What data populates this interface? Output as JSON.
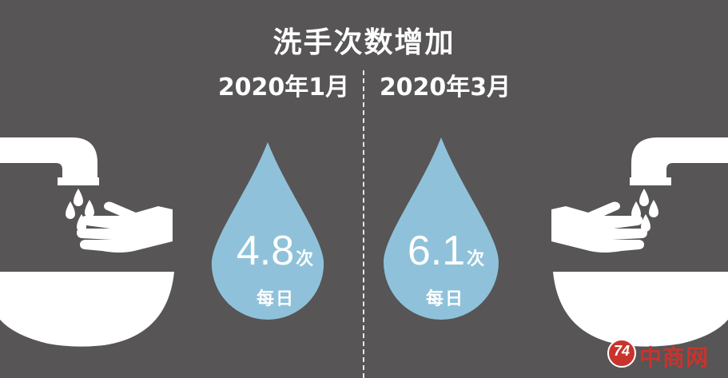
{
  "chart_data": {
    "type": "bar",
    "title": "洗手次数增加",
    "categories": [
      "2020年1月",
      "2020年3月"
    ],
    "values": [
      4.8,
      6.1
    ],
    "value_labels": [
      "4.8",
      "6.1"
    ],
    "unit": "次",
    "per_label": "每日"
  },
  "colors": {
    "background": "#575556",
    "drop": "#8fc2da",
    "icon": "#ffffff",
    "watermark": "#c8342c"
  },
  "watermark": {
    "logo_text": "74",
    "text": "中商网"
  }
}
